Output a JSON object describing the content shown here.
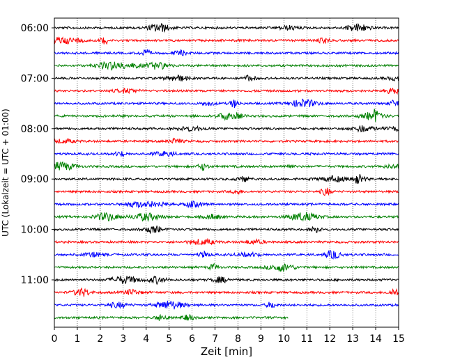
{
  "chart_data": {
    "type": "line",
    "title": "",
    "xlabel": "Zeit  [min]",
    "ylabel": "UTC (Lokalzeit = UTC + 01:00)",
    "xlim": [
      0,
      15
    ],
    "x_ticks": [
      "0",
      "1",
      "2",
      "3",
      "4",
      "5",
      "6",
      "7",
      "8",
      "9",
      "10",
      "11",
      "12",
      "13",
      "14",
      "15"
    ],
    "y_ticks": [
      "06:00",
      "07:00",
      "08:00",
      "09:00",
      "10:00",
      "11:00"
    ],
    "grid": "vertical dotted",
    "trace_interval_minutes": 15,
    "trace_count": 24,
    "last_trace_end_minute": 10.2,
    "trace_colors": [
      "#000000",
      "#ff0000",
      "#0000ff",
      "#008000"
    ]
  }
}
